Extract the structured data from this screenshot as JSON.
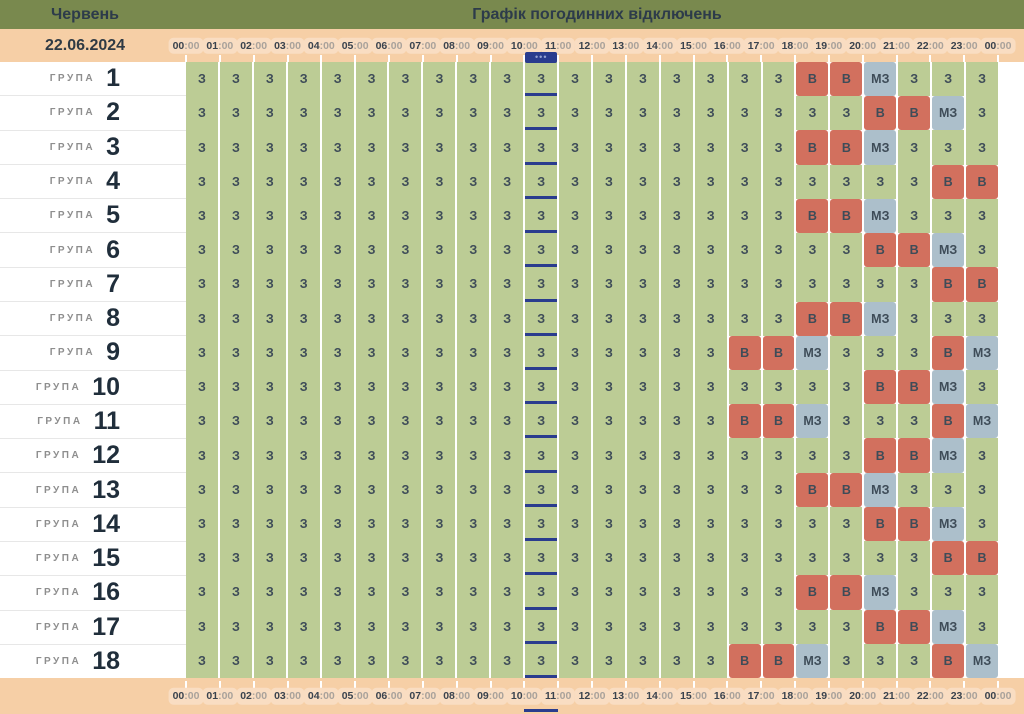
{
  "header": {
    "month": "Червень",
    "title": "Графік погодинних відключень"
  },
  "date_label": "22.06.2024",
  "marker": {
    "badge_dots": "•••",
    "column_index": 10
  },
  "legend_colors": {
    "З": "#BCCC95",
    "В": "#D2705E",
    "МЗ": "#ACBFCB"
  },
  "group_prefix": "ГРУПА",
  "group_numbers": [
    "1",
    "2",
    "3",
    "4",
    "5",
    "6",
    "7",
    "8",
    "9",
    "10",
    "11",
    "12",
    "13",
    "14",
    "15",
    "16",
    "17",
    "18"
  ],
  "chart_data": {
    "type": "heatmap",
    "title": "Графік погодинних відключень",
    "x_labels": [
      "00:00",
      "01:00",
      "02:00",
      "03:00",
      "04:00",
      "05:00",
      "06:00",
      "07:00",
      "08:00",
      "09:00",
      "10:00",
      "11:00",
      "12:00",
      "13:00",
      "14:00",
      "15:00",
      "16:00",
      "17:00",
      "18:00",
      "19:00",
      "20:00",
      "21:00",
      "22:00",
      "23:00",
      "00:00"
    ],
    "y_labels": [
      "ГРУПА 1",
      "ГРУПА 2",
      "ГРУПА 3",
      "ГРУПА 4",
      "ГРУПА 5",
      "ГРУПА 6",
      "ГРУПА 7",
      "ГРУПА 8",
      "ГРУПА 9",
      "ГРУПА 10",
      "ГРУПА 11",
      "ГРУПА 12",
      "ГРУПА 13",
      "ГРУПА 14",
      "ГРУПА 15",
      "ГРУПА 16",
      "ГРУПА 17",
      "ГРУПА 18"
    ],
    "cell_symbols": [
      "З",
      "В",
      "МЗ"
    ],
    "rows": [
      [
        "З",
        "З",
        "З",
        "З",
        "З",
        "З",
        "З",
        "З",
        "З",
        "З",
        "З",
        "З",
        "З",
        "З",
        "З",
        "З",
        "З",
        "З",
        "В",
        "В",
        "МЗ",
        "З",
        "З",
        "З"
      ],
      [
        "З",
        "З",
        "З",
        "З",
        "З",
        "З",
        "З",
        "З",
        "З",
        "З",
        "З",
        "З",
        "З",
        "З",
        "З",
        "З",
        "З",
        "З",
        "З",
        "З",
        "В",
        "В",
        "МЗ",
        "З"
      ],
      [
        "З",
        "З",
        "З",
        "З",
        "З",
        "З",
        "З",
        "З",
        "З",
        "З",
        "З",
        "З",
        "З",
        "З",
        "З",
        "З",
        "З",
        "З",
        "В",
        "В",
        "МЗ",
        "З",
        "З",
        "З"
      ],
      [
        "З",
        "З",
        "З",
        "З",
        "З",
        "З",
        "З",
        "З",
        "З",
        "З",
        "З",
        "З",
        "З",
        "З",
        "З",
        "З",
        "З",
        "З",
        "З",
        "З",
        "З",
        "З",
        "В",
        "В"
      ],
      [
        "З",
        "З",
        "З",
        "З",
        "З",
        "З",
        "З",
        "З",
        "З",
        "З",
        "З",
        "З",
        "З",
        "З",
        "З",
        "З",
        "З",
        "З",
        "В",
        "В",
        "МЗ",
        "З",
        "З",
        "З"
      ],
      [
        "З",
        "З",
        "З",
        "З",
        "З",
        "З",
        "З",
        "З",
        "З",
        "З",
        "З",
        "З",
        "З",
        "З",
        "З",
        "З",
        "З",
        "З",
        "З",
        "З",
        "В",
        "В",
        "МЗ",
        "З"
      ],
      [
        "З",
        "З",
        "З",
        "З",
        "З",
        "З",
        "З",
        "З",
        "З",
        "З",
        "З",
        "З",
        "З",
        "З",
        "З",
        "З",
        "З",
        "З",
        "З",
        "З",
        "З",
        "З",
        "В",
        "В"
      ],
      [
        "З",
        "З",
        "З",
        "З",
        "З",
        "З",
        "З",
        "З",
        "З",
        "З",
        "З",
        "З",
        "З",
        "З",
        "З",
        "З",
        "З",
        "З",
        "В",
        "В",
        "МЗ",
        "З",
        "З",
        "З"
      ],
      [
        "З",
        "З",
        "З",
        "З",
        "З",
        "З",
        "З",
        "З",
        "З",
        "З",
        "З",
        "З",
        "З",
        "З",
        "З",
        "З",
        "В",
        "В",
        "МЗ",
        "З",
        "З",
        "З",
        "В",
        "МЗ"
      ],
      [
        "З",
        "З",
        "З",
        "З",
        "З",
        "З",
        "З",
        "З",
        "З",
        "З",
        "З",
        "З",
        "З",
        "З",
        "З",
        "З",
        "З",
        "З",
        "З",
        "З",
        "В",
        "В",
        "МЗ",
        "З"
      ],
      [
        "З",
        "З",
        "З",
        "З",
        "З",
        "З",
        "З",
        "З",
        "З",
        "З",
        "З",
        "З",
        "З",
        "З",
        "З",
        "З",
        "В",
        "В",
        "МЗ",
        "З",
        "З",
        "З",
        "В",
        "МЗ"
      ],
      [
        "З",
        "З",
        "З",
        "З",
        "З",
        "З",
        "З",
        "З",
        "З",
        "З",
        "З",
        "З",
        "З",
        "З",
        "З",
        "З",
        "З",
        "З",
        "З",
        "З",
        "В",
        "В",
        "МЗ",
        "З"
      ],
      [
        "З",
        "З",
        "З",
        "З",
        "З",
        "З",
        "З",
        "З",
        "З",
        "З",
        "З",
        "З",
        "З",
        "З",
        "З",
        "З",
        "З",
        "З",
        "В",
        "В",
        "МЗ",
        "З",
        "З",
        "З"
      ],
      [
        "З",
        "З",
        "З",
        "З",
        "З",
        "З",
        "З",
        "З",
        "З",
        "З",
        "З",
        "З",
        "З",
        "З",
        "З",
        "З",
        "З",
        "З",
        "З",
        "З",
        "В",
        "В",
        "МЗ",
        "З"
      ],
      [
        "З",
        "З",
        "З",
        "З",
        "З",
        "З",
        "З",
        "З",
        "З",
        "З",
        "З",
        "З",
        "З",
        "З",
        "З",
        "З",
        "З",
        "З",
        "З",
        "З",
        "З",
        "З",
        "В",
        "В"
      ],
      [
        "З",
        "З",
        "З",
        "З",
        "З",
        "З",
        "З",
        "З",
        "З",
        "З",
        "З",
        "З",
        "З",
        "З",
        "З",
        "З",
        "З",
        "З",
        "В",
        "В",
        "МЗ",
        "З",
        "З",
        "З"
      ],
      [
        "З",
        "З",
        "З",
        "З",
        "З",
        "З",
        "З",
        "З",
        "З",
        "З",
        "З",
        "З",
        "З",
        "З",
        "З",
        "З",
        "З",
        "З",
        "З",
        "З",
        "В",
        "В",
        "МЗ",
        "З"
      ],
      [
        "З",
        "З",
        "З",
        "З",
        "З",
        "З",
        "З",
        "З",
        "З",
        "З",
        "З",
        "З",
        "З",
        "З",
        "З",
        "З",
        "В",
        "В",
        "МЗ",
        "З",
        "З",
        "З",
        "В",
        "МЗ"
      ]
    ]
  }
}
